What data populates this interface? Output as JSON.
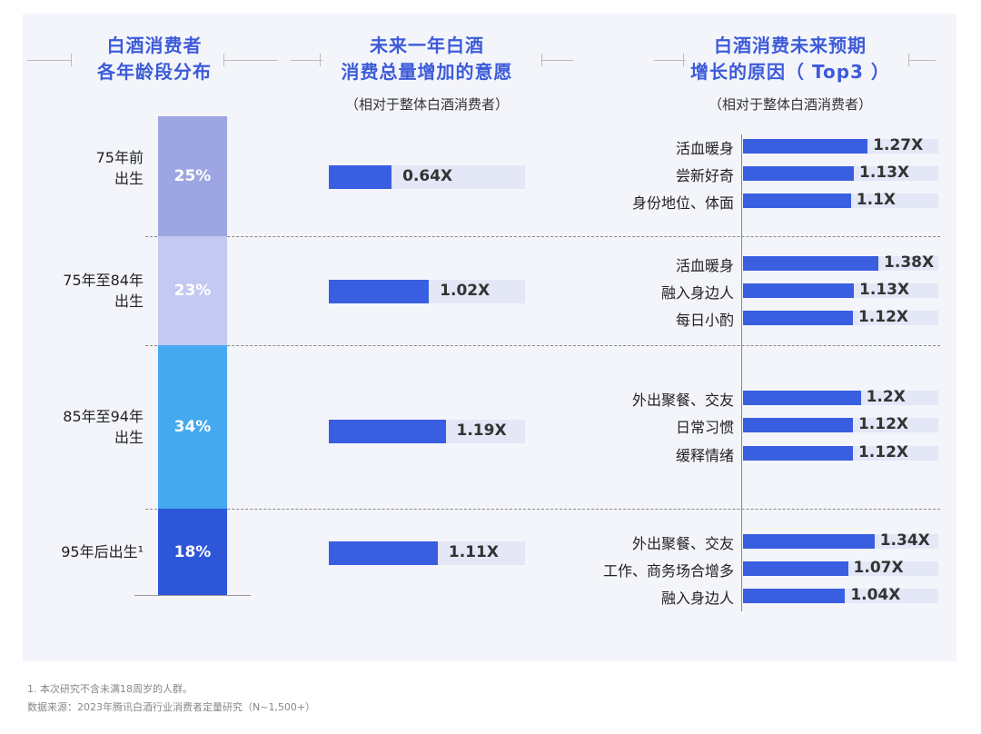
{
  "titles": {
    "col1": [
      "白酒消费者",
      "各年龄段分布"
    ],
    "col2": [
      "未来一年白酒",
      "消费总量增加的意愿"
    ],
    "col2_sub": "（相对于整体白酒消费者）",
    "col3": [
      "白酒消费未来预期",
      "增长的原因（ Top3 ）"
    ],
    "col3_sub": "（相对于整体白酒消费者）"
  },
  "chart_data": [
    {
      "type": "bar",
      "title": "白酒消费者各年龄段分布",
      "stacked": true,
      "categories": [
        "75年前出生",
        "75年至84年出生",
        "85年至94年出生",
        "95年后出生"
      ],
      "age_lines": [
        [
          "75年前",
          "出生"
        ],
        [
          "75年至84年",
          "出生"
        ],
        [
          "85年至94年",
          "出生"
        ],
        [
          "95年后出生¹"
        ]
      ],
      "values": [
        25,
        23,
        34,
        18
      ],
      "labels": [
        "25%",
        "23%",
        "34%",
        "18%"
      ],
      "colors": [
        "#9da5e2",
        "#c3c9f1",
        "#45a9ef",
        "#2e56d9"
      ]
    },
    {
      "type": "bar",
      "title": "未来一年白酒消费总量增加的意愿",
      "unit": "X",
      "xlim": [
        0,
        2
      ],
      "categories": [
        "75年前出生",
        "75年至84年出生",
        "85年至94年出生",
        "95年后出生"
      ],
      "values": [
        0.64,
        1.02,
        1.19,
        1.11
      ],
      "labels": [
        "0.64X",
        "1.02X",
        "1.19X",
        "1.11X"
      ]
    },
    {
      "type": "bar",
      "title": "白酒消费未来预期增长的原因（Top3）",
      "unit": "X",
      "xlim": [
        0,
        2
      ],
      "groups": [
        {
          "items": [
            {
              "label": "活血暖身",
              "value": 1.27,
              "text": "1.27X"
            },
            {
              "label": "尝新好奇",
              "value": 1.13,
              "text": "1.13X"
            },
            {
              "label": "身份地位、体面",
              "value": 1.1,
              "text": "1.1X"
            }
          ]
        },
        {
          "items": [
            {
              "label": "活血暖身",
              "value": 1.38,
              "text": "1.38X"
            },
            {
              "label": "融入身边人",
              "value": 1.13,
              "text": "1.13X"
            },
            {
              "label": "每日小酌",
              "value": 1.12,
              "text": "1.12X"
            }
          ]
        },
        {
          "items": [
            {
              "label": "外出聚餐、交友",
              "value": 1.2,
              "text": "1.2X"
            },
            {
              "label": "日常习惯",
              "value": 1.12,
              "text": "1.12X"
            },
            {
              "label": "缓释情绪",
              "value": 1.12,
              "text": "1.12X"
            }
          ]
        },
        {
          "items": [
            {
              "label": "外出聚餐、交友",
              "value": 1.34,
              "text": "1.34X"
            },
            {
              "label": "工作、商务场合增多",
              "value": 1.07,
              "text": "1.07X"
            },
            {
              "label": "融入身边人",
              "value": 1.04,
              "text": "1.04X"
            }
          ]
        }
      ]
    }
  ],
  "footnotes": [
    "1. 本次研究不含未满18周岁的人群。",
    "数据来源：2023年腾讯白酒行业消费者定量研究（N~1,500+）"
  ]
}
